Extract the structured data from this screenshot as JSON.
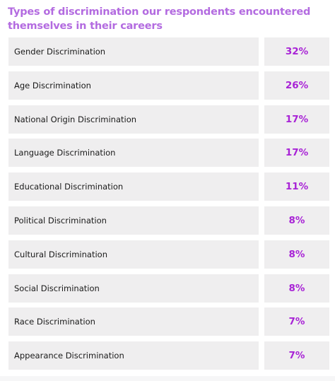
{
  "chart_data": {
    "type": "table",
    "title": "Types of discrimination our respondents encountered themselves in their careers",
    "rows": [
      {
        "label": "Gender Discrimination",
        "value": 32,
        "display": "32%"
      },
      {
        "label": "Age Discrimination",
        "value": 26,
        "display": "26%"
      },
      {
        "label": "National Origin Discrimination",
        "value": 17,
        "display": "17%"
      },
      {
        "label": "Language Discrimination",
        "value": 17,
        "display": "17%"
      },
      {
        "label": "Educational Discrimination",
        "value": 11,
        "display": "11%"
      },
      {
        "label": "Political Discrimination",
        "value": 8,
        "display": "8%"
      },
      {
        "label": "Cultural Discrimination",
        "value": 8,
        "display": "8%"
      },
      {
        "label": "Social Discrimination",
        "value": 8,
        "display": "8%"
      },
      {
        "label": "Race Discrimination",
        "value": 7,
        "display": "7%"
      },
      {
        "label": "Appearance Discrimination",
        "value": 7,
        "display": "7%"
      }
    ],
    "colors": {
      "title": "#b36be0",
      "value": "#a823d6",
      "cell_background": "#efeeef",
      "label": "#1a1a1a"
    }
  }
}
